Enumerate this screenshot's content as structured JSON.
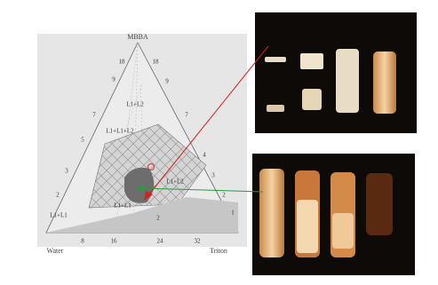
{
  "diagram": {
    "vertices": {
      "top": "MBBA",
      "left": "Water",
      "right": "Triton"
    },
    "left_ticks": [
      "18",
      "9",
      "7",
      "5",
      "3",
      "2"
    ],
    "right_ticks": [
      "18",
      "9",
      "7",
      "4",
      "3",
      "2",
      "1"
    ],
    "bottom_ticks": [
      "8",
      "16",
      "24",
      "32"
    ],
    "regions": [
      "L1+L2",
      "L1+L1+L2",
      "L1+L2",
      "L1+L1",
      "L1+L1",
      "2"
    ]
  }
}
